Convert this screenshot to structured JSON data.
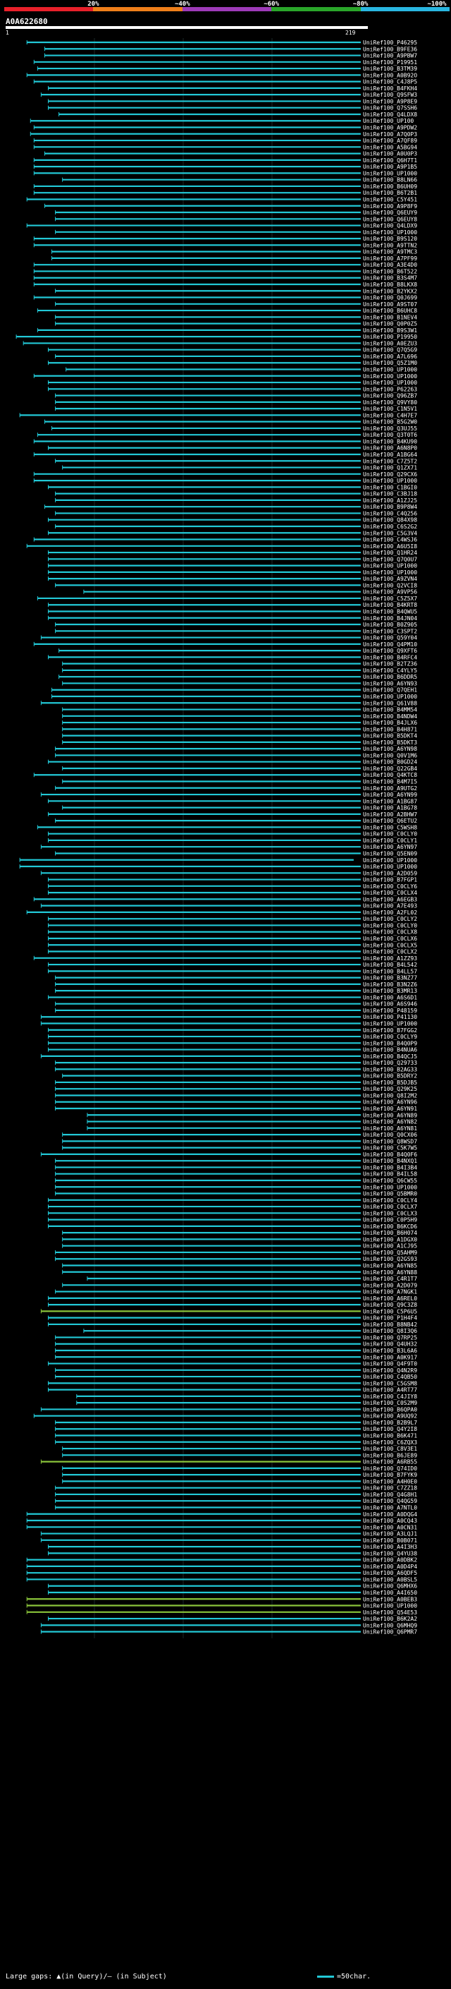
{
  "scale": {
    "labels": [
      "20%",
      "~40%",
      "~60%",
      "~80%",
      "~100%"
    ],
    "colors": [
      "#e8202a",
      "#ef7f1a",
      "#9d3ab8",
      "#2aa62a",
      "#29b6e0"
    ]
  },
  "query": {
    "id": "A0A622680",
    "start": "1",
    "end": "219"
  },
  "hit_colors": {
    "default": "#22c8d6",
    "green": "#8ac43a"
  },
  "hits": [
    {
      "label": "UniRef100_P46295",
      "s": 0.06,
      "e": 1
    },
    {
      "label": "UniRef100_B9FE36",
      "s": 0.11,
      "e": 1
    },
    {
      "label": "UniRef100_A9PBW7",
      "s": 0.11,
      "e": 1
    },
    {
      "label": "UniRef100_P19951",
      "s": 0.08,
      "e": 1
    },
    {
      "label": "UniRef100_B3TM39",
      "s": 0.09,
      "e": 1
    },
    {
      "label": "UniRef100_A0B92O",
      "s": 0.06,
      "e": 1
    },
    {
      "label": "UniRef100_C4J8P5",
      "s": 0.08,
      "e": 1
    },
    {
      "label": "UniRef100_B4FKH4",
      "s": 0.12,
      "e": 1
    },
    {
      "label": "UniRef100_Q9SFW3",
      "s": 0.1,
      "e": 1
    },
    {
      "label": "UniRef100_A9P8E9",
      "s": 0.12,
      "e": 1
    },
    {
      "label": "UniRef100_Q7SSH6",
      "s": 0.12,
      "e": 1
    },
    {
      "label": "UniRef100_Q4LDX8",
      "s": 0.15,
      "e": 1
    },
    {
      "label": "UniRef100_UP100",
      "s": 0.07,
      "e": 1
    },
    {
      "label": "UniRef100_A9PDW2",
      "s": 0.08,
      "e": 1
    },
    {
      "label": "UniRef100_A7Q0P3",
      "s": 0.07,
      "e": 1
    },
    {
      "label": "UniRef100_A7QF89",
      "s": 0.08,
      "e": 1
    },
    {
      "label": "UniRef100_A5BG94",
      "s": 0.08,
      "e": 1
    },
    {
      "label": "UniRef100_A0U0P3",
      "s": 0.11,
      "e": 1
    },
    {
      "label": "UniRef100_Q6H7T1",
      "s": 0.08,
      "e": 1
    },
    {
      "label": "UniRef100_A9P1B5",
      "s": 0.08,
      "e": 1
    },
    {
      "label": "UniRef100_UP1000",
      "s": 0.08,
      "e": 1
    },
    {
      "label": "UniRef100_B8LN66",
      "s": 0.16,
      "e": 1
    },
    {
      "label": "UniRef100_B6UH09",
      "s": 0.08,
      "e": 1
    },
    {
      "label": "UniRef100_B6T2B1",
      "s": 0.08,
      "e": 1
    },
    {
      "label": "UniRef100_C5Y451",
      "s": 0.06,
      "e": 1
    },
    {
      "label": "UniRef100_A9P8F9",
      "s": 0.11,
      "e": 1
    },
    {
      "label": "UniRef100_Q6EUY9",
      "s": 0.14,
      "e": 1
    },
    {
      "label": "UniRef100_Q6EUY8",
      "s": 0.14,
      "e": 1
    },
    {
      "label": "UniRef100_Q4LDX9",
      "s": 0.06,
      "e": 1
    },
    {
      "label": "UniRef100_UP1000",
      "s": 0.14,
      "e": 1
    },
    {
      "label": "UniRef100_B9S120",
      "s": 0.08,
      "e": 1
    },
    {
      "label": "UniRef100_A9TTN2",
      "s": 0.08,
      "e": 1
    },
    {
      "label": "UniRef100_A9TMC3",
      "s": 0.13,
      "e": 1
    },
    {
      "label": "UniRef100_A7PF99",
      "s": 0.13,
      "e": 1
    },
    {
      "label": "UniRef100_A3E4D0",
      "s": 0.08,
      "e": 1
    },
    {
      "label": "UniRef100_B6T522",
      "s": 0.08,
      "e": 1
    },
    {
      "label": "UniRef100_B3S4M7",
      "s": 0.08,
      "e": 1
    },
    {
      "label": "UniRef100_B8LKX8",
      "s": 0.08,
      "e": 1
    },
    {
      "label": "UniRef100_B2YKX2",
      "s": 0.14,
      "e": 1
    },
    {
      "label": "UniRef100_Q0J699",
      "s": 0.08,
      "e": 1
    },
    {
      "label": "UniRef100_A9ST07",
      "s": 0.14,
      "e": 1
    },
    {
      "label": "UniRef100_B6UHC8",
      "s": 0.09,
      "e": 1
    },
    {
      "label": "UniRef100_B1NEV4",
      "s": 0.14,
      "e": 1
    },
    {
      "label": "UniRef100_Q0P0Z5",
      "s": 0.14,
      "e": 1
    },
    {
      "label": "UniRef100_B9S3W1",
      "s": 0.09,
      "e": 1
    },
    {
      "label": "UniRef100_P19950",
      "s": 0.03,
      "e": 1
    },
    {
      "label": "UniRef100_A0EZU3",
      "s": 0.05,
      "e": 1
    },
    {
      "label": "UniRef100_Q7Q5G9",
      "s": 0.12,
      "e": 1
    },
    {
      "label": "UniRef100_A7L696",
      "s": 0.14,
      "e": 1
    },
    {
      "label": "UniRef100_Q5Z1M0",
      "s": 0.12,
      "e": 1
    },
    {
      "label": "UniRef100_UP1000",
      "s": 0.17,
      "e": 1
    },
    {
      "label": "UniRef100_UP1000",
      "s": 0.08,
      "e": 1
    },
    {
      "label": "UniRef100_UP1000",
      "s": 0.12,
      "e": 1
    },
    {
      "label": "UniRef100_P62263",
      "s": 0.12,
      "e": 1
    },
    {
      "label": "UniRef100_Q96ZB7",
      "s": 0.14,
      "e": 1
    },
    {
      "label": "UniRef100_Q9VY80",
      "s": 0.14,
      "e": 1
    },
    {
      "label": "UniRef100_C1N5V1",
      "s": 0.14,
      "e": 1
    },
    {
      "label": "UniRef100_C4H7E7",
      "s": 0.04,
      "e": 1
    },
    {
      "label": "UniRef100_B5G2W0",
      "s": 0.11,
      "e": 1
    },
    {
      "label": "UniRef100_Q3UJ55",
      "s": 0.13,
      "e": 1
    },
    {
      "label": "UniRef100_Q3T0T6",
      "s": 0.09,
      "e": 1
    },
    {
      "label": "UniRef100_B4KU90",
      "s": 0.08,
      "e": 1
    },
    {
      "label": "UniRef100_A6N8P0",
      "s": 0.12,
      "e": 1
    },
    {
      "label": "UniRef100_A1BG64",
      "s": 0.08,
      "e": 1
    },
    {
      "label": "UniRef100_C7Z5T2",
      "s": 0.14,
      "e": 1
    },
    {
      "label": "UniRef100_Q1ZX71",
      "s": 0.16,
      "e": 1
    },
    {
      "label": "UniRef100_Q29CX6",
      "s": 0.08,
      "e": 1
    },
    {
      "label": "UniRef100_UP1000",
      "s": 0.08,
      "e": 1
    },
    {
      "label": "UniRef100_C1BGI0",
      "s": 0.12,
      "e": 1
    },
    {
      "label": "UniRef100_C3BJ18",
      "s": 0.14,
      "e": 1
    },
    {
      "label": "UniRef100_A1ZJ25",
      "s": 0.14,
      "e": 1
    },
    {
      "label": "UniRef100_B9P8W4",
      "s": 0.11,
      "e": 1
    },
    {
      "label": "UniRef100_C4Q256",
      "s": 0.14,
      "e": 1
    },
    {
      "label": "UniRef100_Q84X98",
      "s": 0.12,
      "e": 1
    },
    {
      "label": "UniRef100_C6S2G2",
      "s": 0.14,
      "e": 1
    },
    {
      "label": "UniRef100_C5G3V4",
      "s": 0.12,
      "e": 1
    },
    {
      "label": "UniRef100_C4WSJ6",
      "s": 0.08,
      "e": 1
    },
    {
      "label": "UniRef100_A6U5I8",
      "s": 0.06,
      "e": 1
    },
    {
      "label": "UniRef100_Q1HR24",
      "s": 0.12,
      "e": 1
    },
    {
      "label": "UniRef100_Q7Q0U7",
      "s": 0.12,
      "e": 1
    },
    {
      "label": "UniRef100_UP1000",
      "s": 0.12,
      "e": 1
    },
    {
      "label": "UniRef100_UP1000",
      "s": 0.12,
      "e": 1
    },
    {
      "label": "UniRef100_A9ZVN4",
      "s": 0.12,
      "e": 1
    },
    {
      "label": "UniRef100_Q2VCI8",
      "s": 0.14,
      "e": 1
    },
    {
      "label": "UniRef100_A9VP56",
      "s": 0.22,
      "e": 1
    },
    {
      "label": "UniRef100_C5Z5X7",
      "s": 0.09,
      "e": 1
    },
    {
      "label": "UniRef100_B4KRT8",
      "s": 0.12,
      "e": 1
    },
    {
      "label": "UniRef100_B4QWU5",
      "s": 0.12,
      "e": 1
    },
    {
      "label": "UniRef100_B4JN04",
      "s": 0.12,
      "e": 1
    },
    {
      "label": "UniRef100_B0Z905",
      "s": 0.14,
      "e": 1
    },
    {
      "label": "UniRef100_C3SPT2",
      "s": 0.14,
      "e": 1
    },
    {
      "label": "UniRef100_Q59Y04",
      "s": 0.1,
      "e": 1
    },
    {
      "label": "UniRef100_Q4PM10",
      "s": 0.08,
      "e": 1
    },
    {
      "label": "UniRef100_Q9XFT6",
      "s": 0.15,
      "e": 1
    },
    {
      "label": "UniRef100_B4RFC4",
      "s": 0.12,
      "e": 1
    },
    {
      "label": "UniRef100_B2TZ36",
      "s": 0.16,
      "e": 1
    },
    {
      "label": "UniRef100_C4YLY5",
      "s": 0.16,
      "e": 1
    },
    {
      "label": "UniRef100_B6DDR5",
      "s": 0.15,
      "e": 1
    },
    {
      "label": "UniRef100_A6YN93",
      "s": 0.16,
      "e": 1
    },
    {
      "label": "UniRef100_Q7QEH1",
      "s": 0.13,
      "e": 1
    },
    {
      "label": "UniRef100_UP1000",
      "s": 0.13,
      "e": 1
    },
    {
      "label": "UniRef100_Q61V88",
      "s": 0.1,
      "e": 1
    },
    {
      "label": "UniRef100_B4MM54",
      "s": 0.16,
      "e": 1
    },
    {
      "label": "UniRef100_B4NDW4",
      "s": 0.16,
      "e": 1
    },
    {
      "label": "UniRef100_B4JLX6",
      "s": 0.16,
      "e": 1
    },
    {
      "label": "UniRef100_B4H871",
      "s": 0.16,
      "e": 1
    },
    {
      "label": "UniRef100_B5DKT4",
      "s": 0.16,
      "e": 1
    },
    {
      "label": "UniRef100_B5DKT3",
      "s": 0.16,
      "e": 1
    },
    {
      "label": "UniRef100_A6YN98",
      "s": 0.14,
      "e": 1
    },
    {
      "label": "UniRef100_Q0V1M6",
      "s": 0.14,
      "e": 1
    },
    {
      "label": "UniRef100_B0GD24",
      "s": 0.12,
      "e": 1
    },
    {
      "label": "UniRef100_Q22GB4",
      "s": 0.16,
      "e": 1
    },
    {
      "label": "UniRef100_Q4KTC8",
      "s": 0.08,
      "e": 1
    },
    {
      "label": "UniRef100_B4M7I5",
      "s": 0.16,
      "e": 1
    },
    {
      "label": "UniRef100_A9UTG2",
      "s": 0.14,
      "e": 1
    },
    {
      "label": "UniRef100_A6YN99",
      "s": 0.1,
      "e": 1
    },
    {
      "label": "UniRef100_A1BG87",
      "s": 0.12,
      "e": 1
    },
    {
      "label": "UniRef100_A1BG78",
      "s": 0.16,
      "e": 1
    },
    {
      "label": "UniRef100_A2BHW7",
      "s": 0.12,
      "e": 1
    },
    {
      "label": "UniRef100_Q6ETU2",
      "s": 0.14,
      "e": 1
    },
    {
      "label": "UniRef100_C5WSH8",
      "s": 0.09,
      "e": 1
    },
    {
      "label": "UniRef100_C0CLY0",
      "s": 0.12,
      "e": 1
    },
    {
      "label": "UniRef100_C0CLY1",
      "s": 0.12,
      "e": 1
    },
    {
      "label": "UniRef100_A6YN97",
      "s": 0.1,
      "e": 1
    },
    {
      "label": "UniRef100_Q5EN09",
      "s": 0.14,
      "e": 1
    },
    {
      "label": "UniRef100_UP1000",
      "s": 0.04,
      "e": 0.98
    },
    {
      "label": "UniRef100_UP1000",
      "s": 0.04,
      "e": 1
    },
    {
      "label": "UniRef100_A2D059",
      "s": 0.1,
      "e": 1
    },
    {
      "label": "UniRef100_B7FGP1",
      "s": 0.12,
      "e": 1
    },
    {
      "label": "UniRef100_C0CLY6",
      "s": 0.12,
      "e": 1
    },
    {
      "label": "UniRef100_C0CLX4",
      "s": 0.12,
      "e": 1
    },
    {
      "label": "UniRef100_A6EGB3",
      "s": 0.08,
      "e": 1
    },
    {
      "label": "UniRef100_A7E493",
      "s": 0.1,
      "e": 1
    },
    {
      "label": "UniRef100_A2FL02",
      "s": 0.06,
      "e": 1
    },
    {
      "label": "UniRef100_C0CLY2",
      "s": 0.12,
      "e": 1
    },
    {
      "label": "UniRef100_C0CLY0",
      "s": 0.12,
      "e": 1
    },
    {
      "label": "UniRef100_C0CLX8",
      "s": 0.12,
      "e": 1
    },
    {
      "label": "UniRef100_C0CLX6",
      "s": 0.12,
      "e": 1
    },
    {
      "label": "UniRef100_C0CLX5",
      "s": 0.12,
      "e": 1
    },
    {
      "label": "UniRef100_C0CLX2",
      "s": 0.12,
      "e": 1
    },
    {
      "label": "UniRef100_A1ZZ93",
      "s": 0.08,
      "e": 1
    },
    {
      "label": "UniRef100_B4L542",
      "s": 0.12,
      "e": 1
    },
    {
      "label": "UniRef100_B4LL57",
      "s": 0.12,
      "e": 1
    },
    {
      "label": "UniRef100_B3NZ77",
      "s": 0.14,
      "e": 1
    },
    {
      "label": "UniRef100_B3N2Z6",
      "s": 0.14,
      "e": 1
    },
    {
      "label": "UniRef100_B3MR13",
      "s": 0.14,
      "e": 1
    },
    {
      "label": "UniRef100_A6S6D1",
      "s": 0.12,
      "e": 1
    },
    {
      "label": "UniRef100_A6S946",
      "s": 0.14,
      "e": 1
    },
    {
      "label": "UniRef100_P48159",
      "s": 0.14,
      "e": 1
    },
    {
      "label": "UniRef100_P41130",
      "s": 0.1,
      "e": 1
    },
    {
      "label": "UniRef100_UP1000",
      "s": 0.1,
      "e": 1
    },
    {
      "label": "UniRef100_B7FGG2",
      "s": 0.12,
      "e": 1
    },
    {
      "label": "UniRef100_C0CLY9",
      "s": 0.12,
      "e": 1
    },
    {
      "label": "UniRef100_B4Q0P9",
      "s": 0.12,
      "e": 1
    },
    {
      "label": "UniRef100_B4NUA6",
      "s": 0.12,
      "e": 1
    },
    {
      "label": "UniRef100_B4QCJ5",
      "s": 0.1,
      "e": 1
    },
    {
      "label": "UniRef100_Q29733",
      "s": 0.14,
      "e": 1
    },
    {
      "label": "UniRef100_B2AG33",
      "s": 0.14,
      "e": 1
    },
    {
      "label": "UniRef100_B5DRY2",
      "s": 0.16,
      "e": 1
    },
    {
      "label": "UniRef100_B5DJB5",
      "s": 0.14,
      "e": 1
    },
    {
      "label": "UniRef100_Q29K25",
      "s": 0.14,
      "e": 1
    },
    {
      "label": "UniRef100_Q8I2M2",
      "s": 0.14,
      "e": 1
    },
    {
      "label": "UniRef100_A6YN96",
      "s": 0.14,
      "e": 1
    },
    {
      "label": "UniRef100_A6YN91",
      "s": 0.14,
      "e": 1
    },
    {
      "label": "UniRef100_A6YN89",
      "s": 0.23,
      "e": 1
    },
    {
      "label": "UniRef100_A6YN82",
      "s": 0.23,
      "e": 1
    },
    {
      "label": "UniRef100_A6YN81",
      "s": 0.23,
      "e": 1
    },
    {
      "label": "UniRef100_Q0CX06",
      "s": 0.16,
      "e": 1
    },
    {
      "label": "UniRef100_Q8WSD7",
      "s": 0.16,
      "e": 1
    },
    {
      "label": "UniRef100_C5K7W5",
      "s": 0.16,
      "e": 1
    },
    {
      "label": "UniRef100_B4Q0F6",
      "s": 0.1,
      "e": 1
    },
    {
      "label": "UniRef100_B4NXQ1",
      "s": 0.14,
      "e": 1
    },
    {
      "label": "UniRef100_B4I3B4",
      "s": 0.14,
      "e": 1
    },
    {
      "label": "UniRef100_B4IL58",
      "s": 0.14,
      "e": 1
    },
    {
      "label": "UniRef100_Q6CW55",
      "s": 0.14,
      "e": 1
    },
    {
      "label": "UniRef100_UP1000",
      "s": 0.14,
      "e": 1
    },
    {
      "label": "UniRef100_Q5BMR0",
      "s": 0.14,
      "e": 1
    },
    {
      "label": "UniRef100_C0CLY4",
      "s": 0.12,
      "e": 1
    },
    {
      "label": "UniRef100_C0CLX7",
      "s": 0.12,
      "e": 1
    },
    {
      "label": "UniRef100_C0CLX3",
      "s": 0.12,
      "e": 1
    },
    {
      "label": "UniRef100_C0P5H9",
      "s": 0.12,
      "e": 1
    },
    {
      "label": "UniRef100_B6KCD6",
      "s": 0.12,
      "e": 1
    },
    {
      "label": "UniRef100_B6H074",
      "s": 0.16,
      "e": 1
    },
    {
      "label": "UniRef100_A1DGX0",
      "s": 0.16,
      "e": 1
    },
    {
      "label": "UniRef100_A1CJ95",
      "s": 0.16,
      "e": 1
    },
    {
      "label": "UniRef100_Q5AHM9",
      "s": 0.14,
      "e": 1
    },
    {
      "label": "UniRef100_Q2GS93",
      "s": 0.14,
      "e": 1
    },
    {
      "label": "UniRef100_A6YN85",
      "s": 0.16,
      "e": 1
    },
    {
      "label": "UniRef100_A6YN88",
      "s": 0.16,
      "e": 1
    },
    {
      "label": "UniRef100_C4R1T7",
      "s": 0.23,
      "e": 1
    },
    {
      "label": "UniRef100_A2D079",
      "s": 0.16,
      "e": 1
    },
    {
      "label": "UniRef100_A7NGK1",
      "s": 0.14,
      "e": 1
    },
    {
      "label": "UniRef100_A6REL0",
      "s": 0.12,
      "e": 1
    },
    {
      "label": "UniRef100_Q9C3Z8",
      "s": 0.12,
      "e": 1
    },
    {
      "label": "UniRef100_C5P6U5",
      "s": 0.1,
      "e": 1,
      "c": "green"
    },
    {
      "label": "UniRef100_P1H4F4",
      "s": 0.12,
      "e": 1
    },
    {
      "label": "UniRef100_B8NB42",
      "s": 0.12,
      "e": 1
    },
    {
      "label": "UniRef100_Q8I3Q6",
      "s": 0.22,
      "e": 1
    },
    {
      "label": "UniRef100_Q7RP25",
      "s": 0.14,
      "e": 1
    },
    {
      "label": "UniRef100_Q4UH32",
      "s": 0.14,
      "e": 1
    },
    {
      "label": "UniRef100_B3L6A6",
      "s": 0.14,
      "e": 1
    },
    {
      "label": "UniRef100_A0K917",
      "s": 0.14,
      "e": 1
    },
    {
      "label": "UniRef100_Q4F9T0",
      "s": 0.12,
      "e": 1
    },
    {
      "label": "UniRef100_Q4N2R9",
      "s": 0.14,
      "e": 1
    },
    {
      "label": "UniRef100_C4QB50",
      "s": 0.14,
      "e": 1
    },
    {
      "label": "UniRef100_C5GSM8",
      "s": 0.12,
      "e": 1
    },
    {
      "label": "UniRef100_A4RT77",
      "s": 0.12,
      "e": 1
    },
    {
      "label": "UniRef100_C4JIY8",
      "s": 0.2,
      "e": 1
    },
    {
      "label": "UniRef100_C0S2M9",
      "s": 0.2,
      "e": 1
    },
    {
      "label": "UniRef100_B6QPA0",
      "s": 0.1,
      "e": 1
    },
    {
      "label": "UniRef100_A9UQ92",
      "s": 0.08,
      "e": 1
    },
    {
      "label": "UniRef100_B2B9L7",
      "s": 0.14,
      "e": 1
    },
    {
      "label": "UniRef100_Q4Y2I8",
      "s": 0.14,
      "e": 1
    },
    {
      "label": "UniRef100_B6K471",
      "s": 0.14,
      "e": 1
    },
    {
      "label": "UniRef100_C6ZQX3",
      "s": 0.14,
      "e": 1
    },
    {
      "label": "UniRef100_C8V3E1",
      "s": 0.16,
      "e": 1
    },
    {
      "label": "UniRef100_B6JE89",
      "s": 0.16,
      "e": 1
    },
    {
      "label": "UniRef100_A6RB55",
      "s": 0.1,
      "e": 1,
      "c": "green"
    },
    {
      "label": "UniRef100_Q74ID0",
      "s": 0.16,
      "e": 1
    },
    {
      "label": "UniRef100_B7FYK9",
      "s": 0.16,
      "e": 1
    },
    {
      "label": "UniRef100_A4H0E0",
      "s": 0.16,
      "e": 1
    },
    {
      "label": "UniRef100_C7ZZ18",
      "s": 0.14,
      "e": 1
    },
    {
      "label": "UniRef100_Q4G8H1",
      "s": 0.14,
      "e": 1
    },
    {
      "label": "UniRef100_Q4QG59",
      "s": 0.14,
      "e": 1
    },
    {
      "label": "UniRef100_A7NTL0",
      "s": 0.14,
      "e": 1
    },
    {
      "label": "UniRef100_A0DQG4",
      "s": 0.06,
      "e": 1
    },
    {
      "label": "UniRef100_A0CQ43",
      "s": 0.06,
      "e": 1
    },
    {
      "label": "UniRef100_A0CN31",
      "s": 0.06,
      "e": 1
    },
    {
      "label": "UniRef100_A3LQJ1",
      "s": 0.1,
      "e": 1
    },
    {
      "label": "UniRef100_B0B071",
      "s": 0.1,
      "e": 1
    },
    {
      "label": "UniRef100_A4I3H3",
      "s": 0.12,
      "e": 1
    },
    {
      "label": "UniRef100_Q4YU38",
      "s": 0.12,
      "e": 1
    },
    {
      "label": "UniRef100_A0DBK2",
      "s": 0.06,
      "e": 1
    },
    {
      "label": "UniRef100_A0D4P4",
      "s": 0.06,
      "e": 1
    },
    {
      "label": "UniRef100_A6QDF5",
      "s": 0.06,
      "e": 1
    },
    {
      "label": "UniRef100_A0BSL5",
      "s": 0.06,
      "e": 1
    },
    {
      "label": "UniRef100_Q6MHX6",
      "s": 0.12,
      "e": 1
    },
    {
      "label": "UniRef100_A4I650",
      "s": 0.12,
      "e": 1
    },
    {
      "label": "UniRef100_A0BEB3",
      "s": 0.06,
      "e": 1,
      "c": "green"
    },
    {
      "label": "UniRef100_UP1000",
      "s": 0.06,
      "e": 1,
      "c": "green"
    },
    {
      "label": "UniRef100_Q54E53",
      "s": 0.06,
      "e": 1,
      "c": "green"
    },
    {
      "label": "UniRef100_B6K2A2",
      "s": 0.12,
      "e": 1
    },
    {
      "label": "UniRef100_Q6MHQ9",
      "s": 0.1,
      "e": 1
    },
    {
      "label": "UniRef100_Q6PMR7",
      "s": 0.1,
      "e": 1
    }
  ],
  "legend": {
    "left": "Large gaps: ▲(in Query)/— (in Subject)",
    "right": "=50char."
  }
}
